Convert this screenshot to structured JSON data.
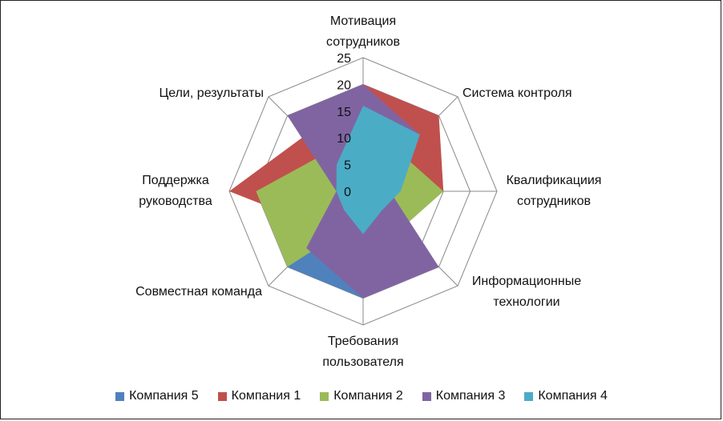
{
  "chart_data": {
    "type": "radar",
    "categories": [
      "Мотивация сотрудников",
      "Система контроля",
      "Квалификациия сотрудников",
      "Информационные технологии",
      "Требования пользователя",
      "Совместная команда",
      "Поддержка руководства",
      "Цели, результаты"
    ],
    "category_lines": [
      [
        "Мотивация",
        "сотрудников"
      ],
      [
        "Система контроля"
      ],
      [
        "Квалификациия",
        "сотрудников"
      ],
      [
        "Информационные",
        "технологии"
      ],
      [
        "Требования",
        "пользователя"
      ],
      [
        "Совместная команда"
      ],
      [
        "Поддержка",
        "руководства"
      ],
      [
        "Цели, результаты"
      ]
    ],
    "r_ticks": [
      "0",
      "5",
      "10",
      "15",
      "20",
      "25"
    ],
    "r_max": 25,
    "legend_position": "bottom",
    "series": [
      {
        "name": "Компания 5",
        "color": "#4F81BD",
        "values": [
          0,
          0,
          0,
          0,
          20,
          20,
          0,
          0
        ]
      },
      {
        "name": "Компания 1",
        "color": "#C0504D",
        "values": [
          20,
          20,
          15,
          5,
          5,
          10,
          25,
          15
        ]
      },
      {
        "name": "Компания 2",
        "color": "#9BBB59",
        "values": [
          5,
          10,
          15,
          10,
          5,
          20,
          20,
          10
        ]
      },
      {
        "name": "Компания 3",
        "color": "#8064A2",
        "values": [
          20,
          15,
          5,
          20,
          20,
          15,
          5,
          20
        ]
      },
      {
        "name": "Компания 4",
        "color": "#4BACC6",
        "values": [
          16,
          15,
          7,
          5,
          8,
          5,
          5,
          7
        ]
      }
    ]
  }
}
